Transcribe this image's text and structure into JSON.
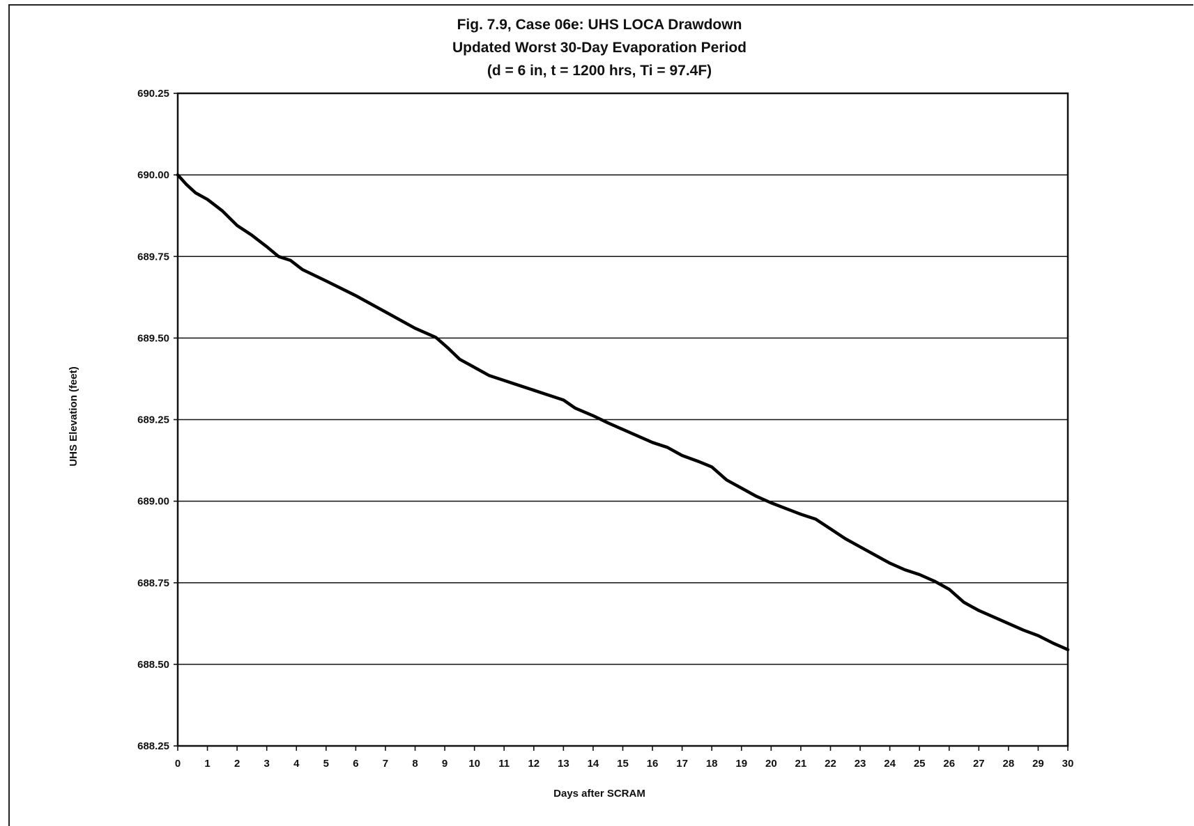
{
  "chart_data": {
    "type": "line",
    "title_lines": [
      "Fig. 7.9, Case 06e:  UHS LOCA Drawdown",
      "Updated Worst 30-Day Evaporation Period",
      "(d = 6 in, t = 1200 hrs, Ti = 97.4F)"
    ],
    "xlabel": "Days after SCRAM",
    "ylabel": "UHS Elevation (feet)",
    "xlim": [
      0,
      30
    ],
    "ylim": [
      688.25,
      690.25
    ],
    "x_ticks": [
      0,
      1,
      2,
      3,
      4,
      5,
      6,
      7,
      8,
      9,
      10,
      11,
      12,
      13,
      14,
      15,
      16,
      17,
      18,
      19,
      20,
      21,
      22,
      23,
      24,
      25,
      26,
      27,
      28,
      29,
      30
    ],
    "x_tick_labels": [
      "0",
      "1",
      "2",
      "3",
      "4",
      "5",
      "6",
      "7",
      "8",
      "9",
      "10",
      "11",
      "12",
      "13",
      "14",
      "15",
      "16",
      "17",
      "18",
      "19",
      "20",
      "21",
      "22",
      "23",
      "24",
      "25",
      "26",
      "27",
      "28",
      "29",
      "30"
    ],
    "y_ticks": [
      688.25,
      688.5,
      688.75,
      689.0,
      689.25,
      689.5,
      689.75,
      690.0,
      690.25
    ],
    "y_tick_labels": [
      "688.25",
      "688.50",
      "688.75",
      "689.00",
      "689.25",
      "689.50",
      "689.75",
      "690.00",
      "690.25"
    ],
    "grid": "horizontal",
    "legend": "none",
    "line_color": "#000000",
    "series": [
      {
        "x": [
          0,
          0.3,
          0.6,
          1,
          1.5,
          2,
          2.5,
          3,
          3.4,
          3.8,
          4.2,
          5,
          6,
          7,
          8,
          8.7,
          9.1,
          9.5,
          10,
          10.5,
          11,
          11.5,
          12,
          12.5,
          13,
          13.4,
          14,
          14.5,
          15,
          16,
          16.5,
          17,
          17.6,
          18,
          18.5,
          19,
          19.5,
          20,
          21,
          21.5,
          22,
          22.5,
          23,
          23.5,
          24,
          24.5,
          25,
          25.5,
          25.8,
          26,
          26.5,
          27,
          27.5,
          28,
          28.5,
          29,
          29.5,
          30
        ],
        "y": [
          690.0,
          689.97,
          689.945,
          689.925,
          689.89,
          689.845,
          689.815,
          689.78,
          689.75,
          689.738,
          689.71,
          689.675,
          689.63,
          689.58,
          689.53,
          689.502,
          689.47,
          689.435,
          689.41,
          689.385,
          689.37,
          689.355,
          689.34,
          689.325,
          689.31,
          689.285,
          689.262,
          689.24,
          689.22,
          689.18,
          689.165,
          689.14,
          689.12,
          689.105,
          689.065,
          689.04,
          689.015,
          688.995,
          688.96,
          688.945,
          688.915,
          688.885,
          688.86,
          688.835,
          688.81,
          688.79,
          688.775,
          688.755,
          688.74,
          688.73,
          688.69,
          688.665,
          688.645,
          688.625,
          688.605,
          688.588,
          688.565,
          688.545
        ]
      }
    ]
  }
}
